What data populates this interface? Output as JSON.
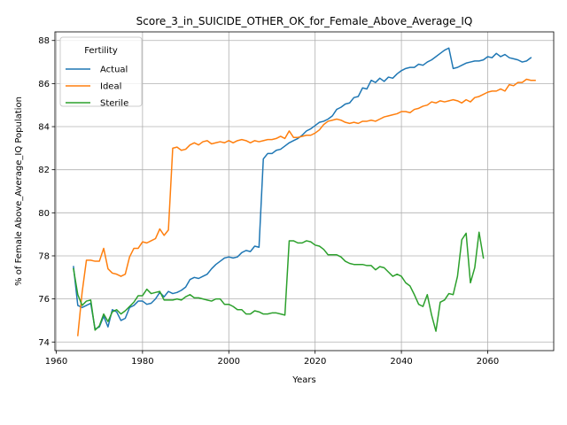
{
  "chart_data": {
    "type": "line",
    "title": "Score_3_in_SUICIDE_OTHER_OK_for_Female_Above_Average_IQ",
    "xlabel": "Years",
    "ylabel": "% of Female Above_Average_IQ Population",
    "xlim": [
      1959.7,
      2075.3
    ],
    "ylim": [
      73.6,
      88.4
    ],
    "xticks": [
      1960,
      1980,
      2000,
      2020,
      2040,
      2060
    ],
    "yticks": [
      74,
      76,
      78,
      80,
      82,
      84,
      86,
      88
    ],
    "grid": true,
    "legend": {
      "title": "Fertility",
      "position": "top-left"
    },
    "series": [
      {
        "name": "Actual",
        "color": "#1f77b4",
        "points": [
          [
            1964,
            77.5
          ],
          [
            1965,
            75.7
          ],
          [
            1966,
            75.6
          ],
          [
            1967,
            75.7
          ],
          [
            1968,
            75.8
          ],
          [
            1969,
            74.6
          ],
          [
            1970,
            74.7
          ],
          [
            1971,
            75.2
          ],
          [
            1972,
            74.7
          ],
          [
            1973,
            75.5
          ],
          [
            1974,
            75.4
          ],
          [
            1975,
            75.0
          ],
          [
            1976,
            75.1
          ],
          [
            1977,
            75.6
          ],
          [
            1978,
            75.7
          ],
          [
            1979,
            75.9
          ],
          [
            1980,
            75.9
          ],
          [
            1981,
            75.75
          ],
          [
            1982,
            75.8
          ],
          [
            1983,
            76.0
          ],
          [
            1984,
            76.3
          ],
          [
            1985,
            76.1
          ],
          [
            1986,
            76.35
          ],
          [
            1987,
            76.25
          ],
          [
            1988,
            76.3
          ],
          [
            1989,
            76.4
          ],
          [
            1990,
            76.55
          ],
          [
            1991,
            76.9
          ],
          [
            1992,
            77.0
          ],
          [
            1993,
            76.95
          ],
          [
            1994,
            77.05
          ],
          [
            1995,
            77.15
          ],
          [
            1996,
            77.4
          ],
          [
            1997,
            77.6
          ],
          [
            1998,
            77.75
          ],
          [
            1999,
            77.9
          ],
          [
            2000,
            77.95
          ],
          [
            2001,
            77.9
          ],
          [
            2002,
            77.95
          ],
          [
            2003,
            78.15
          ],
          [
            2004,
            78.25
          ],
          [
            2005,
            78.2
          ],
          [
            2006,
            78.45
          ],
          [
            2007,
            78.4
          ],
          [
            2008,
            82.5
          ],
          [
            2009,
            82.75
          ],
          [
            2010,
            82.75
          ],
          [
            2011,
            82.9
          ],
          [
            2012,
            82.95
          ],
          [
            2013,
            83.1
          ],
          [
            2014,
            83.25
          ],
          [
            2015,
            83.35
          ],
          [
            2016,
            83.45
          ],
          [
            2017,
            83.6
          ],
          [
            2018,
            83.8
          ],
          [
            2019,
            83.9
          ],
          [
            2020,
            84.05
          ],
          [
            2021,
            84.2
          ],
          [
            2022,
            84.25
          ],
          [
            2023,
            84.35
          ],
          [
            2024,
            84.5
          ],
          [
            2025,
            84.8
          ],
          [
            2026,
            84.9
          ],
          [
            2027,
            85.05
          ],
          [
            2028,
            85.1
          ],
          [
            2029,
            85.35
          ],
          [
            2030,
            85.4
          ],
          [
            2031,
            85.8
          ],
          [
            2032,
            85.75
          ],
          [
            2033,
            86.15
          ],
          [
            2034,
            86.05
          ],
          [
            2035,
            86.25
          ],
          [
            2036,
            86.1
          ],
          [
            2037,
            86.3
          ],
          [
            2038,
            86.25
          ],
          [
            2039,
            86.45
          ],
          [
            2040,
            86.6
          ],
          [
            2041,
            86.7
          ],
          [
            2042,
            86.75
          ],
          [
            2043,
            86.75
          ],
          [
            2044,
            86.9
          ],
          [
            2045,
            86.85
          ],
          [
            2046,
            87.0
          ],
          [
            2047,
            87.1
          ],
          [
            2048,
            87.25
          ],
          [
            2049,
            87.4
          ],
          [
            2050,
            87.55
          ],
          [
            2051,
            87.65
          ],
          [
            2052,
            86.7
          ],
          [
            2053,
            86.75
          ],
          [
            2054,
            86.85
          ],
          [
            2055,
            86.95
          ],
          [
            2056,
            87.0
          ],
          [
            2057,
            87.05
          ],
          [
            2058,
            87.05
          ],
          [
            2059,
            87.1
          ],
          [
            2060,
            87.25
          ],
          [
            2061,
            87.2
          ],
          [
            2062,
            87.4
          ],
          [
            2063,
            87.25
          ],
          [
            2064,
            87.35
          ],
          [
            2065,
            87.2
          ],
          [
            2066,
            87.15
          ],
          [
            2067,
            87.1
          ],
          [
            2068,
            87.0
          ],
          [
            2069,
            87.05
          ],
          [
            2070,
            87.2
          ]
        ]
      },
      {
        "name": "Ideal",
        "color": "#ff7f0e",
        "points": [
          [
            1965,
            74.3
          ],
          [
            1966,
            76.3
          ],
          [
            1967,
            77.8
          ],
          [
            1968,
            77.8
          ],
          [
            1969,
            77.75
          ],
          [
            1970,
            77.75
          ],
          [
            1971,
            78.35
          ],
          [
            1972,
            77.4
          ],
          [
            1973,
            77.2
          ],
          [
            1974,
            77.15
          ],
          [
            1975,
            77.05
          ],
          [
            1976,
            77.15
          ],
          [
            1977,
            77.95
          ],
          [
            1978,
            78.35
          ],
          [
            1979,
            78.35
          ],
          [
            1980,
            78.65
          ],
          [
            1981,
            78.6
          ],
          [
            1982,
            78.7
          ],
          [
            1983,
            78.8
          ],
          [
            1984,
            79.25
          ],
          [
            1985,
            78.95
          ],
          [
            1986,
            79.2
          ],
          [
            1987,
            83.0
          ],
          [
            1988,
            83.05
          ],
          [
            1989,
            82.9
          ],
          [
            1990,
            82.95
          ],
          [
            1991,
            83.15
          ],
          [
            1992,
            83.25
          ],
          [
            1993,
            83.15
          ],
          [
            1994,
            83.3
          ],
          [
            1995,
            83.35
          ],
          [
            1996,
            83.2
          ],
          [
            1997,
            83.25
          ],
          [
            1998,
            83.3
          ],
          [
            1999,
            83.25
          ],
          [
            2000,
            83.35
          ],
          [
            2001,
            83.25
          ],
          [
            2002,
            83.35
          ],
          [
            2003,
            83.4
          ],
          [
            2004,
            83.35
          ],
          [
            2005,
            83.25
          ],
          [
            2006,
            83.35
          ],
          [
            2007,
            83.3
          ],
          [
            2008,
            83.35
          ],
          [
            2009,
            83.4
          ],
          [
            2010,
            83.4
          ],
          [
            2011,
            83.45
          ],
          [
            2012,
            83.55
          ],
          [
            2013,
            83.45
          ],
          [
            2014,
            83.8
          ],
          [
            2015,
            83.5
          ],
          [
            2016,
            83.5
          ],
          [
            2017,
            83.55
          ],
          [
            2018,
            83.6
          ],
          [
            2019,
            83.6
          ],
          [
            2020,
            83.7
          ],
          [
            2021,
            83.85
          ],
          [
            2022,
            84.1
          ],
          [
            2023,
            84.25
          ],
          [
            2024,
            84.3
          ],
          [
            2025,
            84.35
          ],
          [
            2026,
            84.3
          ],
          [
            2027,
            84.2
          ],
          [
            2028,
            84.15
          ],
          [
            2029,
            84.2
          ],
          [
            2030,
            84.15
          ],
          [
            2031,
            84.25
          ],
          [
            2032,
            84.25
          ],
          [
            2033,
            84.3
          ],
          [
            2034,
            84.25
          ],
          [
            2035,
            84.35
          ],
          [
            2036,
            84.45
          ],
          [
            2037,
            84.5
          ],
          [
            2038,
            84.55
          ],
          [
            2039,
            84.6
          ],
          [
            2040,
            84.7
          ],
          [
            2041,
            84.7
          ],
          [
            2042,
            84.65
          ],
          [
            2043,
            84.8
          ],
          [
            2044,
            84.85
          ],
          [
            2045,
            84.95
          ],
          [
            2046,
            85.0
          ],
          [
            2047,
            85.15
          ],
          [
            2048,
            85.1
          ],
          [
            2049,
            85.2
          ],
          [
            2050,
            85.15
          ],
          [
            2051,
            85.2
          ],
          [
            2052,
            85.25
          ],
          [
            2053,
            85.2
          ],
          [
            2054,
            85.1
          ],
          [
            2055,
            85.25
          ],
          [
            2056,
            85.15
          ],
          [
            2057,
            85.35
          ],
          [
            2058,
            85.4
          ],
          [
            2059,
            85.5
          ],
          [
            2060,
            85.6
          ],
          [
            2061,
            85.65
          ],
          [
            2062,
            85.65
          ],
          [
            2063,
            85.75
          ],
          [
            2064,
            85.65
          ],
          [
            2065,
            85.95
          ],
          [
            2066,
            85.9
          ],
          [
            2067,
            86.05
          ],
          [
            2068,
            86.05
          ],
          [
            2069,
            86.2
          ],
          [
            2070,
            86.15
          ],
          [
            2071,
            86.15
          ]
        ]
      },
      {
        "name": "Sterile",
        "color": "#2ca02c",
        "points": [
          [
            1964,
            77.4
          ],
          [
            1965,
            76.2
          ],
          [
            1966,
            75.7
          ],
          [
            1967,
            75.9
          ],
          [
            1968,
            75.95
          ],
          [
            1969,
            74.55
          ],
          [
            1970,
            74.75
          ],
          [
            1971,
            75.3
          ],
          [
            1972,
            74.95
          ],
          [
            1973,
            75.4
          ],
          [
            1974,
            75.5
          ],
          [
            1975,
            75.3
          ],
          [
            1976,
            75.45
          ],
          [
            1977,
            75.65
          ],
          [
            1978,
            75.85
          ],
          [
            1979,
            76.15
          ],
          [
            1980,
            76.15
          ],
          [
            1981,
            76.45
          ],
          [
            1982,
            76.25
          ],
          [
            1983,
            76.3
          ],
          [
            1984,
            76.35
          ],
          [
            1985,
            75.95
          ],
          [
            1986,
            75.95
          ],
          [
            1987,
            75.95
          ],
          [
            1988,
            76.0
          ],
          [
            1989,
            75.95
          ],
          [
            1990,
            76.1
          ],
          [
            1991,
            76.2
          ],
          [
            1992,
            76.05
          ],
          [
            1993,
            76.05
          ],
          [
            1994,
            76.0
          ],
          [
            1995,
            75.95
          ],
          [
            1996,
            75.9
          ],
          [
            1997,
            76.0
          ],
          [
            1998,
            76.0
          ],
          [
            1999,
            75.75
          ],
          [
            2000,
            75.75
          ],
          [
            2001,
            75.65
          ],
          [
            2002,
            75.5
          ],
          [
            2003,
            75.5
          ],
          [
            2004,
            75.3
          ],
          [
            2005,
            75.3
          ],
          [
            2006,
            75.45
          ],
          [
            2007,
            75.4
          ],
          [
            2008,
            75.3
          ],
          [
            2009,
            75.3
          ],
          [
            2010,
            75.35
          ],
          [
            2011,
            75.35
          ],
          [
            2012,
            75.3
          ],
          [
            2013,
            75.25
          ],
          [
            2014,
            78.7
          ],
          [
            2015,
            78.7
          ],
          [
            2016,
            78.6
          ],
          [
            2017,
            78.6
          ],
          [
            2018,
            78.7
          ],
          [
            2019,
            78.65
          ],
          [
            2020,
            78.5
          ],
          [
            2021,
            78.45
          ],
          [
            2022,
            78.3
          ],
          [
            2023,
            78.05
          ],
          [
            2024,
            78.05
          ],
          [
            2025,
            78.05
          ],
          [
            2026,
            77.95
          ],
          [
            2027,
            77.75
          ],
          [
            2028,
            77.65
          ],
          [
            2029,
            77.6
          ],
          [
            2030,
            77.6
          ],
          [
            2031,
            77.6
          ],
          [
            2032,
            77.55
          ],
          [
            2033,
            77.55
          ],
          [
            2034,
            77.35
          ],
          [
            2035,
            77.5
          ],
          [
            2036,
            77.45
          ],
          [
            2037,
            77.25
          ],
          [
            2038,
            77.05
          ],
          [
            2039,
            77.15
          ],
          [
            2040,
            77.05
          ],
          [
            2041,
            76.75
          ],
          [
            2042,
            76.6
          ],
          [
            2043,
            76.2
          ],
          [
            2044,
            75.75
          ],
          [
            2045,
            75.65
          ],
          [
            2046,
            76.2
          ],
          [
            2047,
            75.25
          ],
          [
            2048,
            74.5
          ],
          [
            2049,
            75.85
          ],
          [
            2050,
            75.95
          ],
          [
            2051,
            76.25
          ],
          [
            2052,
            76.2
          ],
          [
            2053,
            77.05
          ],
          [
            2054,
            78.75
          ],
          [
            2055,
            79.05
          ],
          [
            2056,
            76.75
          ],
          [
            2057,
            77.45
          ],
          [
            2058,
            79.1
          ],
          [
            2059,
            77.9
          ]
        ]
      }
    ]
  }
}
